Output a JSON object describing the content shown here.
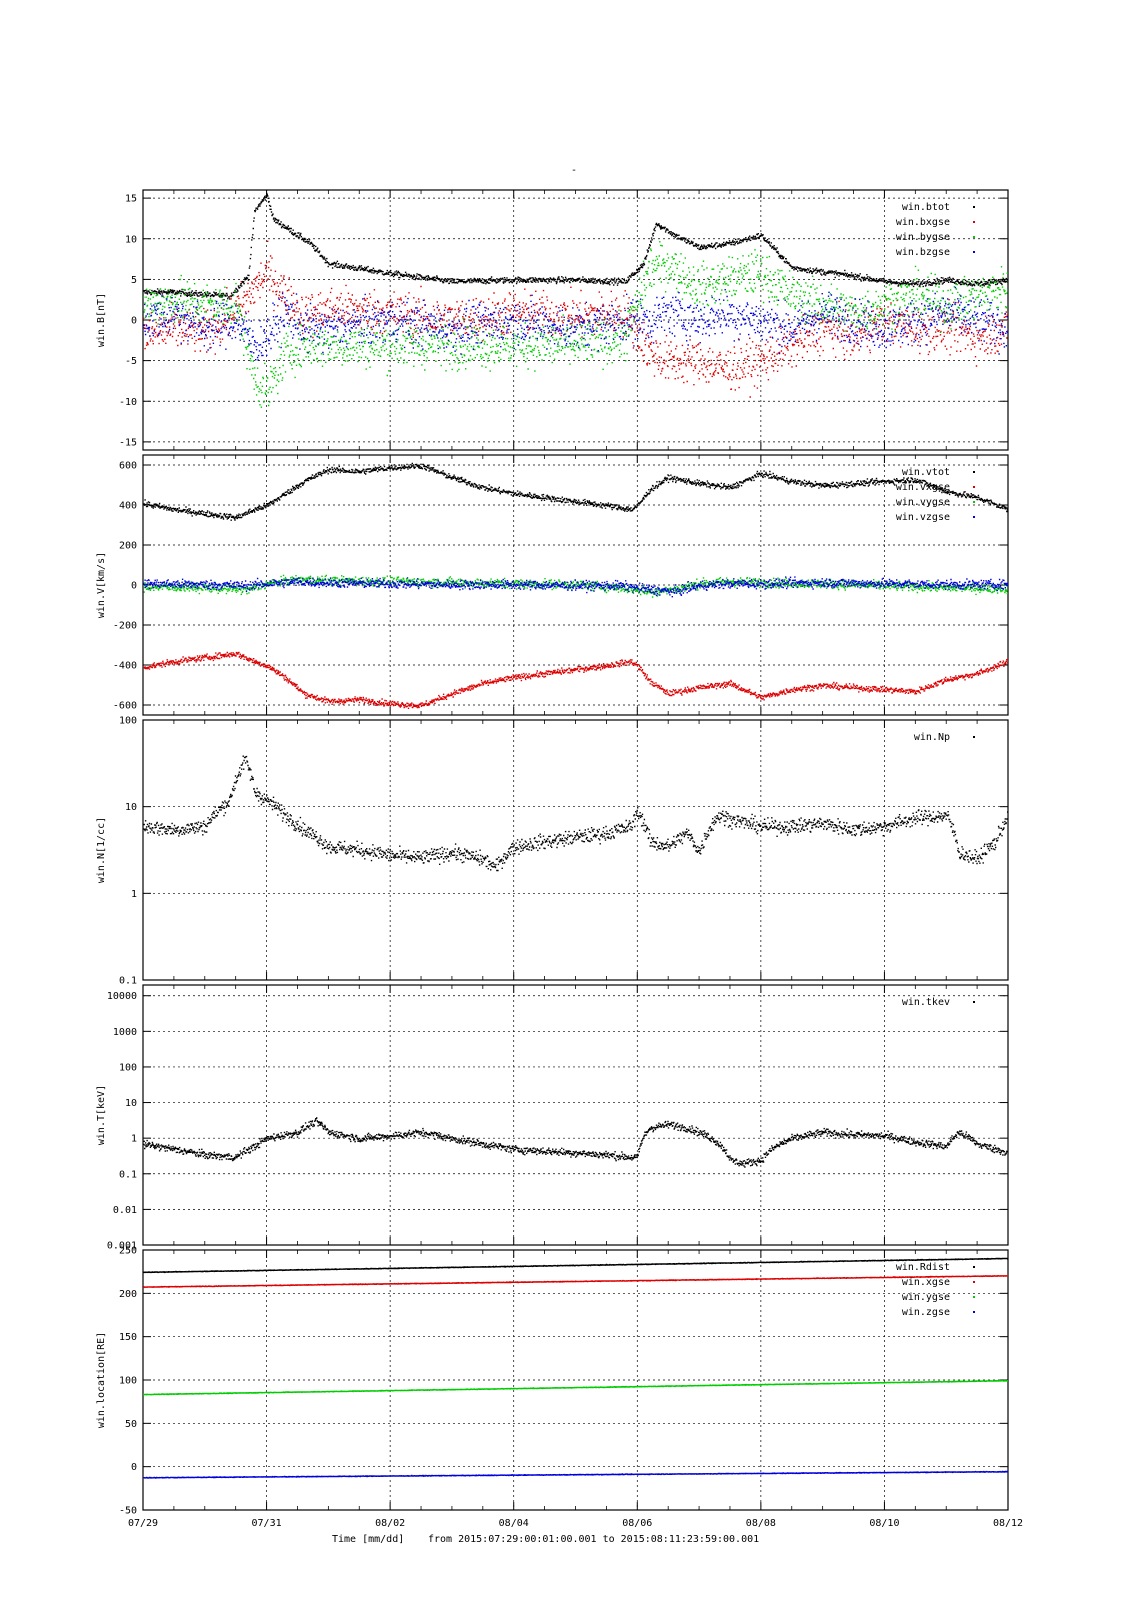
{
  "title": "-",
  "footer": {
    "xlabel": "Time [mm/dd]",
    "range_text": "from 2015:07:29:00:01:00.001  to  2015:08:11:23:59:00.001"
  },
  "colors": {
    "black": "#000000",
    "red": "#dd0000",
    "green": "#00cc00",
    "blue": "#0000dd"
  },
  "chart_data": {
    "type": "scatter",
    "x_ticks": [
      "07/29",
      "07/31",
      "08/02",
      "08/04",
      "08/06",
      "08/08",
      "08/10",
      "08/12"
    ],
    "x_tick_days": [
      0,
      2,
      4,
      6,
      8,
      10,
      12,
      14
    ],
    "xlim_days": [
      0,
      14
    ],
    "grid": true,
    "legend_placement": "top-right",
    "panels": [
      {
        "ylabel": "win.B[nT]",
        "scale": "linear",
        "ylim": [
          -16,
          16
        ],
        "y_ticks": [
          -15,
          -10,
          -5,
          0,
          5,
          10,
          15
        ],
        "y_tick_labels": [
          "-15",
          "-10",
          "-5",
          "0",
          "5",
          "10",
          "15"
        ],
        "series": [
          {
            "name": "win.btot",
            "color": "black",
            "noise": 0.35,
            "x": [
              0,
              0.5,
              1.0,
              1.4,
              1.7,
              1.8,
              2.0,
              2.1,
              2.4,
              2.7,
              3.0,
              4.0,
              5.0,
              6.0,
              7.0,
              7.8,
              8.1,
              8.3,
              8.6,
              9.0,
              9.5,
              10.0,
              10.5,
              11.0,
              11.5,
              12.0,
              12.5,
              13.0,
              13.5,
              14.0
            ],
            "y": [
              3.5,
              3.5,
              3.2,
              3.0,
              5.5,
              13.5,
              15.5,
              12.5,
              11.0,
              9.5,
              7.0,
              5.8,
              4.8,
              5.0,
              5.0,
              4.8,
              7.0,
              12.0,
              10.5,
              9.0,
              9.5,
              10.5,
              6.5,
              6.0,
              5.5,
              4.8,
              4.5,
              5.0,
              4.5,
              5.0
            ]
          },
          {
            "name": "win.bxgse",
            "color": "red",
            "noise": 2.6,
            "x": [
              0,
              0.5,
              1.0,
              1.5,
              1.8,
              2.0,
              2.3,
              2.6,
              3.0,
              4.0,
              5.0,
              6.0,
              7.0,
              7.8,
              8.2,
              8.5,
              9.0,
              9.4,
              10.0,
              10.5,
              11.0,
              11.5,
              12.0,
              12.5,
              13.0,
              13.5,
              14.0
            ],
            "y": [
              -2.0,
              -1.0,
              -1.5,
              1.0,
              4.0,
              6.0,
              3.0,
              0.5,
              1.5,
              1.0,
              0.0,
              1.0,
              0.5,
              1.0,
              -4.0,
              -5.0,
              -5.0,
              -6.0,
              -5.0,
              -3.0,
              -1.0,
              -2.0,
              0.0,
              -1.0,
              -1.0,
              -2.0,
              -1.0
            ]
          },
          {
            "name": "win.bygse",
            "color": "green",
            "noise": 2.6,
            "x": [
              0,
              0.5,
              1.0,
              1.5,
              1.8,
              2.0,
              2.3,
              2.6,
              3.0,
              4.0,
              5.0,
              6.0,
              7.0,
              7.8,
              8.2,
              8.5,
              9.0,
              9.4,
              10.0,
              10.5,
              11.0,
              11.5,
              12.0,
              12.5,
              13.0,
              13.5,
              14.0
            ],
            "y": [
              2.0,
              2.5,
              2.0,
              2.0,
              -7.0,
              -9.0,
              -4.0,
              -3.0,
              -3.0,
              -3.0,
              -3.0,
              -3.0,
              -3.0,
              -2.0,
              6.5,
              7.0,
              4.0,
              5.0,
              6.0,
              3.0,
              2.0,
              1.0,
              2.0,
              3.0,
              2.0,
              3.0,
              4.0
            ]
          },
          {
            "name": "win.bzgse",
            "color": "blue",
            "noise": 2.6,
            "x": [
              0,
              0.5,
              1.0,
              1.5,
              1.8,
              2.0,
              2.3,
              2.6,
              3.0,
              4.0,
              5.0,
              6.0,
              7.0,
              7.8,
              8.2,
              8.5,
              9.0,
              9.4,
              10.0,
              10.5,
              11.0,
              11.5,
              12.0,
              12.5,
              13.0,
              13.5,
              14.0
            ],
            "y": [
              0.0,
              1.0,
              -1.0,
              0.0,
              -3.0,
              -2.0,
              1.0,
              -1.0,
              -1.0,
              0.0,
              -1.0,
              0.0,
              -1.0,
              0.0,
              0.0,
              1.0,
              0.0,
              1.0,
              0.0,
              -1.0,
              1.0,
              0.0,
              -1.0,
              0.0,
              1.0,
              0.0,
              -1.0
            ]
          }
        ]
      },
      {
        "ylabel": "win.V[km/s]",
        "scale": "linear",
        "ylim": [
          -650,
          650
        ],
        "y_ticks": [
          -600,
          -400,
          -200,
          0,
          200,
          400,
          600
        ],
        "y_tick_labels": [
          "-600",
          "-400",
          "-200",
          "0",
          "200",
          "400",
          "600"
        ],
        "series": [
          {
            "name": "win.vtot",
            "color": "black",
            "noise": 14,
            "x": [
              0,
              0.5,
              1.0,
              1.5,
              1.8,
              2.0,
              2.3,
              2.6,
              3.0,
              3.5,
              4.0,
              4.5,
              5.0,
              5.5,
              6.0,
              6.5,
              7.0,
              7.5,
              7.9,
              8.0,
              8.2,
              8.5,
              9.0,
              9.5,
              10.0,
              10.5,
              11.0,
              11.5,
              12.0,
              12.5,
              13.0,
              13.5,
              14.0
            ],
            "y": [
              410,
              380,
              360,
              340,
              380,
              400,
              460,
              520,
              580,
              570,
              590,
              600,
              540,
              490,
              460,
              440,
              420,
              400,
              380,
              400,
              480,
              540,
              510,
              490,
              560,
              520,
              500,
              510,
              520,
              530,
              470,
              440,
              380
            ]
          },
          {
            "name": "win.vxgse",
            "color": "red",
            "noise": 14,
            "x": [
              0,
              0.5,
              1.0,
              1.5,
              1.8,
              2.0,
              2.3,
              2.6,
              3.0,
              3.5,
              4.0,
              4.5,
              5.0,
              5.5,
              6.0,
              6.5,
              7.0,
              7.5,
              7.9,
              8.0,
              8.2,
              8.5,
              9.0,
              9.5,
              10.0,
              10.5,
              11.0,
              11.5,
              12.0,
              12.5,
              13.0,
              13.5,
              14.0
            ],
            "y": [
              -410,
              -380,
              -360,
              -340,
              -380,
              -400,
              -460,
              -540,
              -580,
              -570,
              -590,
              -600,
              -540,
              -490,
              -460,
              -440,
              -420,
              -400,
              -380,
              -400,
              -480,
              -540,
              -510,
              -490,
              -560,
              -520,
              -500,
              -510,
              -520,
              -530,
              -470,
              -440,
              -380
            ]
          },
          {
            "name": "win.vygse",
            "color": "green",
            "noise": 22,
            "x": [
              0,
              1.0,
              1.7,
              2.0,
              2.5,
              3.0,
              4.0,
              5.0,
              6.0,
              7.0,
              7.7,
              8.2,
              8.6,
              9.0,
              9.5,
              10.0,
              11.0,
              12.0,
              13.0,
              14.0
            ],
            "y": [
              -5,
              -10,
              -20,
              10,
              30,
              25,
              20,
              15,
              10,
              5,
              -10,
              -30,
              -20,
              10,
              20,
              15,
              10,
              0,
              -10,
              -15
            ]
          },
          {
            "name": "win.vzgse",
            "color": "blue",
            "noise": 22,
            "x": [
              0,
              1.0,
              1.7,
              2.0,
              2.5,
              3.0,
              4.0,
              5.0,
              6.0,
              7.0,
              7.7,
              8.2,
              8.6,
              9.0,
              9.5,
              10.0,
              11.0,
              12.0,
              13.0,
              14.0
            ],
            "y": [
              10,
              5,
              0,
              10,
              20,
              15,
              10,
              5,
              5,
              0,
              0,
              -20,
              -30,
              0,
              10,
              10,
              15,
              10,
              5,
              5
            ]
          }
        ]
      },
      {
        "ylabel": "win.N[1/cc]",
        "scale": "log",
        "ylim": [
          0.1,
          100
        ],
        "y_ticks": [
          0.1,
          1,
          10,
          100
        ],
        "y_tick_labels": [
          "0.1",
          "1",
          "10",
          "100"
        ],
        "series": [
          {
            "name": "win.Np",
            "color": "black",
            "noise": 0.08,
            "x": [
              0,
              0.5,
              1.0,
              1.4,
              1.65,
              1.8,
              2.0,
              2.3,
              2.6,
              3.0,
              3.5,
              4.0,
              4.5,
              5.0,
              5.5,
              5.7,
              6.0,
              6.5,
              7.0,
              7.5,
              7.9,
              8.0,
              8.2,
              8.5,
              8.8,
              9.0,
              9.3,
              9.6,
              10.0,
              10.5,
              11.0,
              11.5,
              12.0,
              12.5,
              13.0,
              13.2,
              13.5,
              13.8,
              14.0
            ],
            "y": [
              6,
              5.5,
              6,
              12,
              35,
              15,
              12,
              8,
              5.5,
              3.5,
              3.2,
              2.8,
              2.6,
              3,
              2.5,
              2,
              3.5,
              4,
              4.5,
              5,
              6,
              9,
              4,
              3.5,
              5,
              3,
              8,
              7,
              6,
              6,
              6.5,
              5.5,
              6,
              7.5,
              8,
              3,
              2.5,
              4,
              8
            ]
          }
        ]
      },
      {
        "ylabel": "win.T[keV]",
        "scale": "log",
        "ylim": [
          0.001,
          20000
        ],
        "y_ticks": [
          0.001,
          0.01,
          0.1,
          1,
          10,
          100,
          1000,
          10000
        ],
        "y_tick_labels": [
          "0.001",
          "0.01",
          "0.1",
          "1",
          "10",
          "100",
          "1000",
          "10000"
        ],
        "series": [
          {
            "name": "win.tkev",
            "color": "black",
            "noise": 0.1,
            "x": [
              0,
              0.5,
              1.0,
              1.5,
              1.8,
              2.0,
              2.5,
              2.8,
              3.0,
              3.5,
              4.0,
              4.5,
              5.0,
              5.5,
              6.0,
              6.5,
              7.0,
              7.5,
              7.9,
              8.0,
              8.2,
              8.5,
              8.8,
              9.0,
              9.5,
              9.7,
              10.0,
              10.5,
              11.0,
              11.5,
              12.0,
              12.5,
              13.0,
              13.2,
              13.5,
              13.8,
              14.0
            ],
            "y": [
              0.7,
              0.5,
              0.35,
              0.3,
              0.6,
              1,
              1.5,
              3,
              1.5,
              1,
              1.2,
              1.5,
              1,
              0.7,
              0.5,
              0.45,
              0.4,
              0.35,
              0.3,
              0.3,
              2,
              2.5,
              2,
              1.5,
              0.25,
              0.2,
              0.25,
              1,
              1.5,
              1.3,
              1.2,
              0.8,
              0.6,
              1.5,
              0.7,
              0.5,
              0.4
            ]
          }
        ]
      },
      {
        "ylabel": "win.location[RE]",
        "scale": "linear",
        "ylim": [
          -50,
          250
        ],
        "y_ticks": [
          -50,
          0,
          50,
          100,
          150,
          200,
          250
        ],
        "y_tick_labels": [
          "-50",
          "0",
          "50",
          "100",
          "150",
          "200",
          "250"
        ],
        "series": [
          {
            "name": "win.Rdist",
            "color": "black",
            "noise": 0.3,
            "x": [
              0,
              14
            ],
            "y": [
              225,
              241
            ]
          },
          {
            "name": "win.xgse",
            "color": "red",
            "noise": 0.3,
            "x": [
              0,
              14
            ],
            "y": [
              208,
              221
            ]
          },
          {
            "name": "win.ygse",
            "color": "green",
            "noise": 0.3,
            "x": [
              0,
              14
            ],
            "y": [
              84,
              100
            ]
          },
          {
            "name": "win.zgse",
            "color": "blue",
            "noise": 0.3,
            "x": [
              0,
              14
            ],
            "y": [
              -12,
              -5
            ]
          }
        ]
      }
    ]
  }
}
